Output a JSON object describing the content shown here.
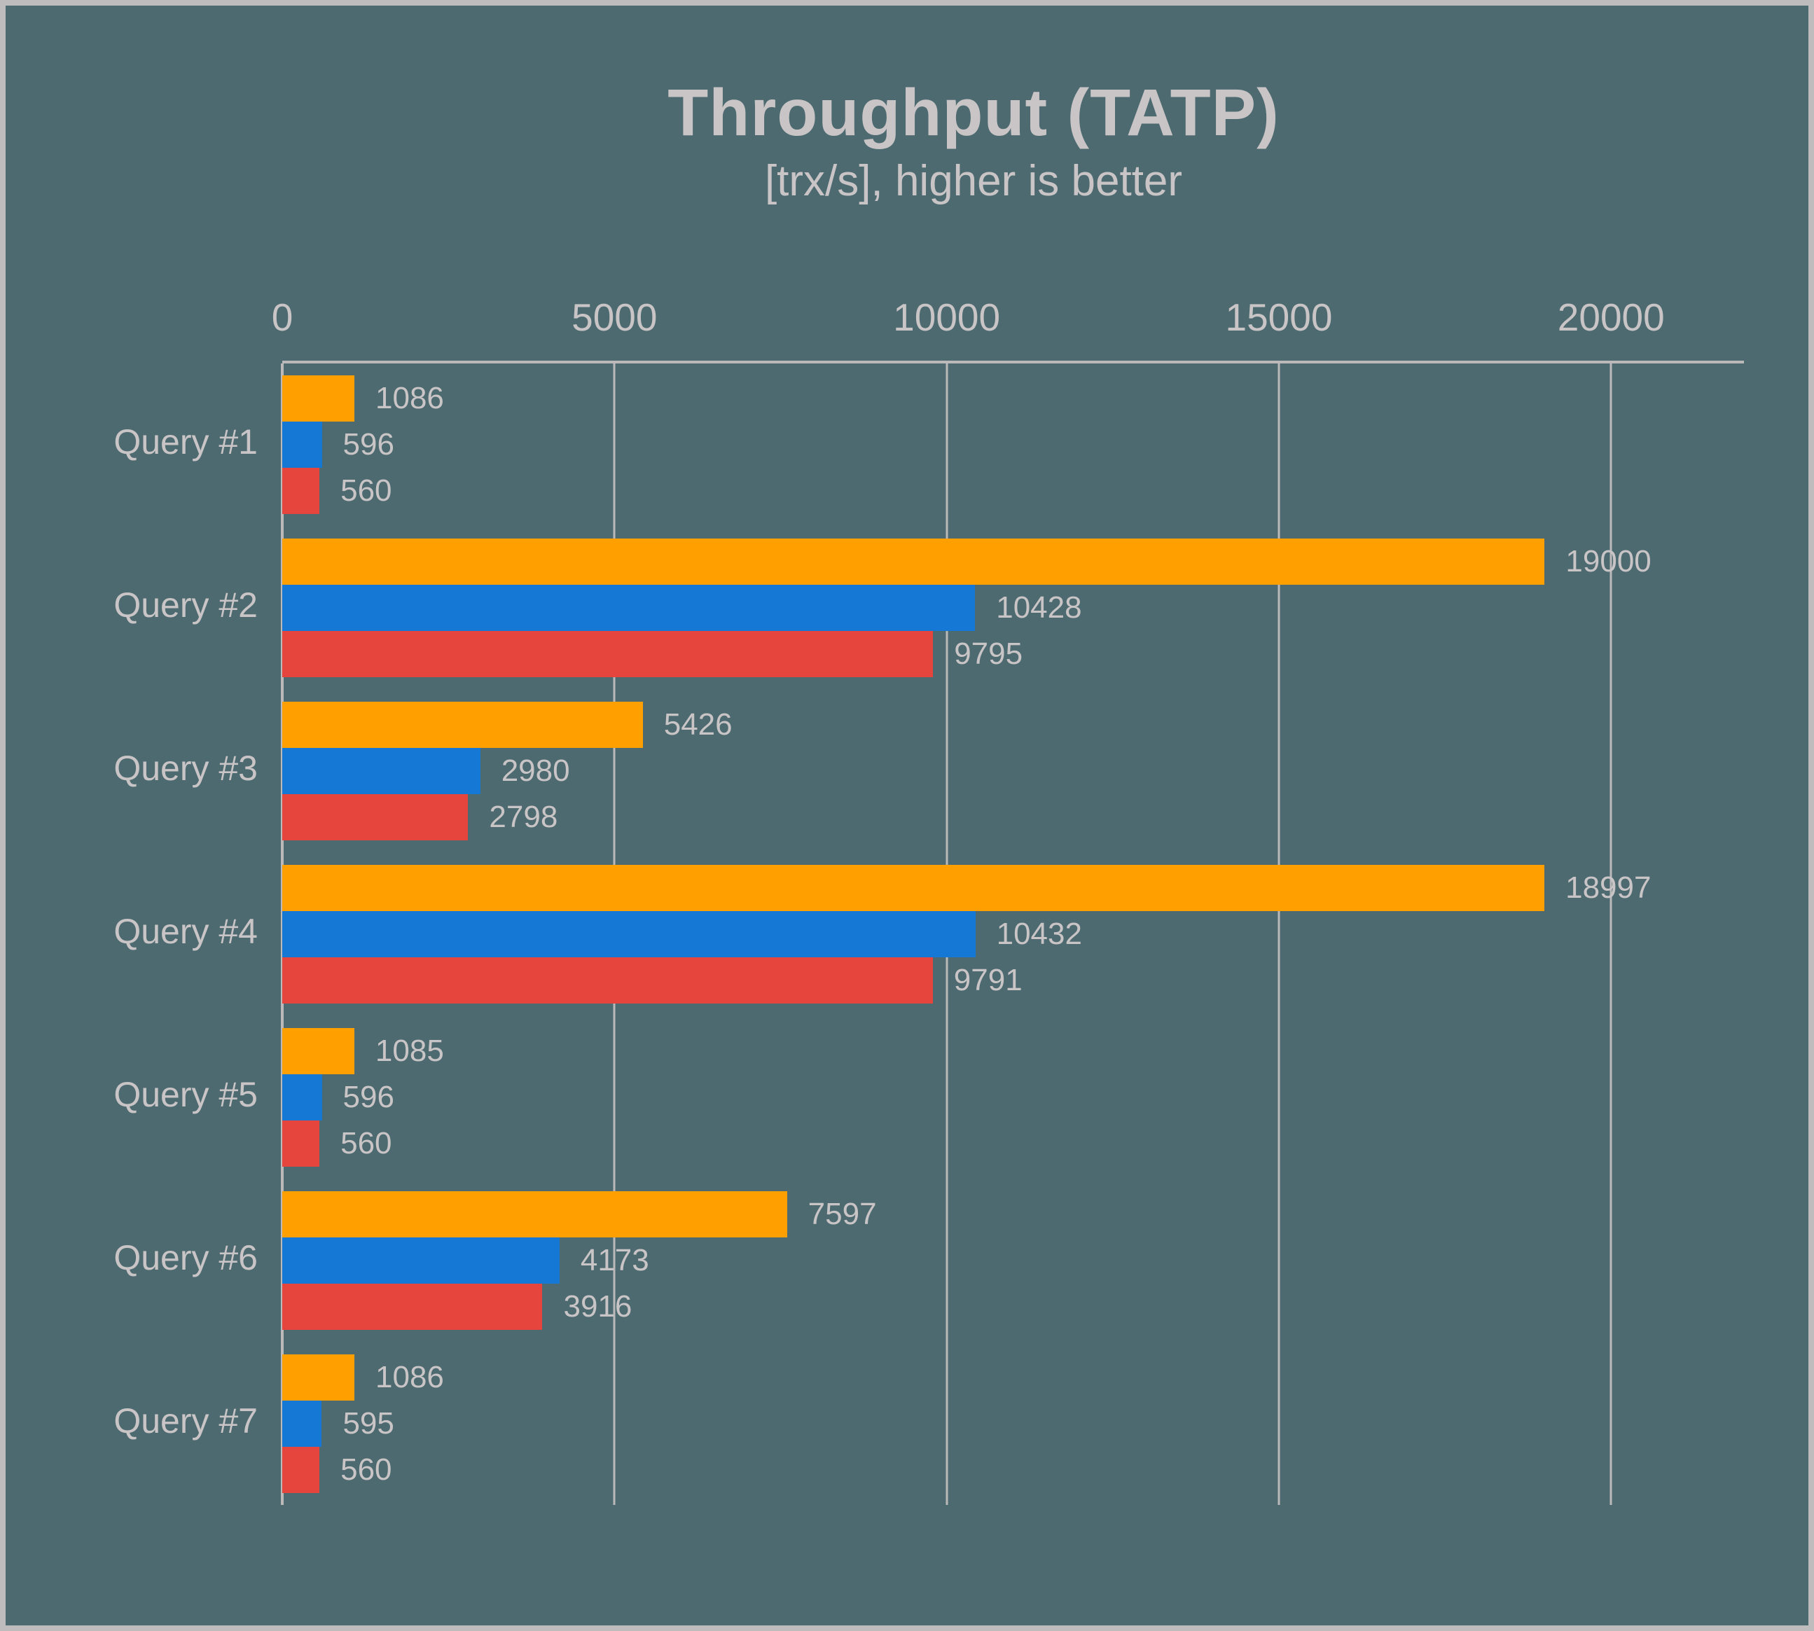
{
  "page": {
    "background": "#4d6a70",
    "frame_color": "#bebcbc",
    "text_color": "#c9c5c6",
    "grid_color": "#bcb9bb"
  },
  "chart_data": {
    "type": "bar",
    "orientation": "horizontal",
    "title": "Throughput (TATP)",
    "subtitle": "[trx/s], higher is better",
    "categories": [
      "Query #1",
      "Query #2",
      "Query #3",
      "Query #4",
      "Query #5",
      "Query #6",
      "Query #7"
    ],
    "series": [
      {
        "name": "orange",
        "color": "#ffa000",
        "values": [
          1086,
          19000,
          5426,
          18997,
          1085,
          7597,
          1086
        ]
      },
      {
        "name": "blue",
        "color": "#1478d4",
        "values": [
          596,
          10428,
          2980,
          10432,
          596,
          4173,
          595
        ]
      },
      {
        "name": "red",
        "color": "#e5453c",
        "values": [
          560,
          9795,
          2798,
          9791,
          560,
          3916,
          560
        ]
      }
    ],
    "x_axis": {
      "position": "top",
      "ticks": [
        "0",
        "5000",
        "10000",
        "15000",
        "20000"
      ],
      "tick_values": [
        0,
        5000,
        10000,
        15000,
        20000
      ],
      "max": 22000
    },
    "grid": true,
    "legend": false,
    "value_labels": true
  }
}
